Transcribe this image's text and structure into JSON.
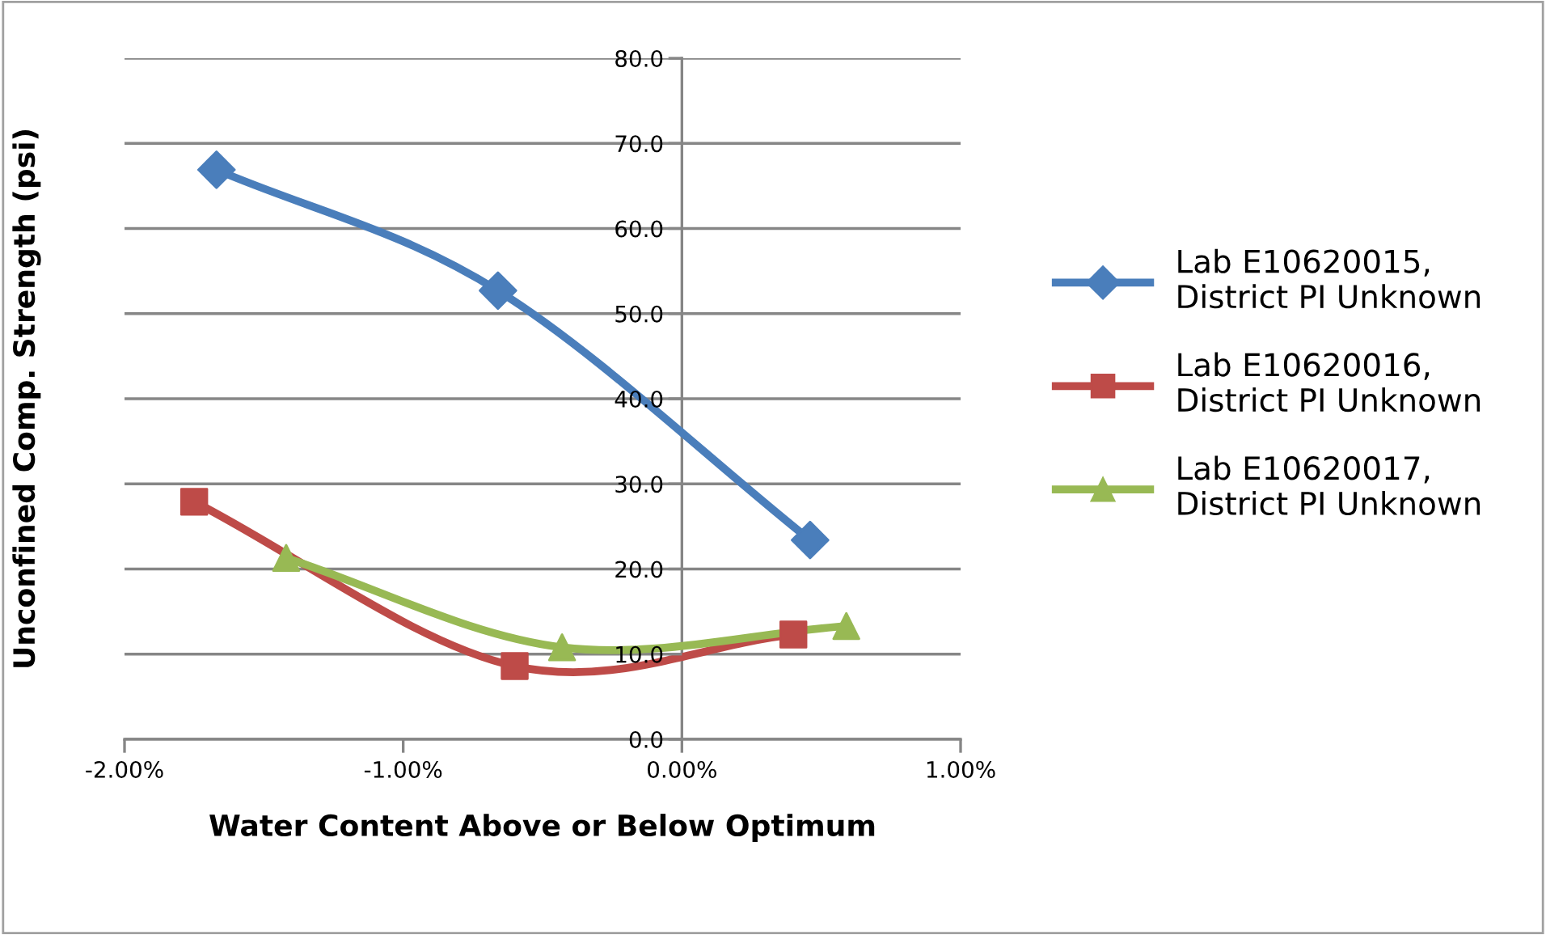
{
  "chart_data": {
    "type": "line",
    "xlabel": "Water Content Above or Below Optimum",
    "ylabel": "Unconfined Comp. Strength (psi)",
    "series": [
      {
        "name": "Lab E10620015,\nDistrict PI Unknown",
        "color": "#4a7ebb",
        "marker": "diamond",
        "x": [
          -1.67,
          -0.66,
          0.46
        ],
        "values": [
          66.9,
          52.7,
          23.4
        ]
      },
      {
        "name": "Lab E10620016,\nDistrict PI Unknown",
        "color": "#be4b48",
        "marker": "square",
        "x": [
          -1.75,
          -0.6,
          0.4
        ],
        "values": [
          27.9,
          8.6,
          12.3
        ]
      },
      {
        "name": "Lab E10620017,\nDistrict PI Unknown",
        "color": "#98b954",
        "marker": "triangle",
        "x": [
          -1.42,
          -0.43,
          0.59
        ],
        "values": [
          21.3,
          10.8,
          13.3
        ]
      }
    ],
    "xlim": [
      -2,
      1
    ],
    "xticks": [
      {
        "value": -2,
        "label": "-2.00%"
      },
      {
        "value": -1,
        "label": "-1.00%"
      },
      {
        "value": 0,
        "label": "0.00%"
      },
      {
        "value": 1,
        "label": "1.00%"
      }
    ],
    "ylim": [
      0,
      80
    ],
    "yticks": [
      {
        "value": 0,
        "label": "0.0"
      },
      {
        "value": 10,
        "label": "10.0"
      },
      {
        "value": 20,
        "label": "20.0"
      },
      {
        "value": 30,
        "label": "30.0"
      },
      {
        "value": 40,
        "label": "40.0"
      },
      {
        "value": 50,
        "label": "50.0"
      },
      {
        "value": 60,
        "label": "60.0"
      },
      {
        "value": 70,
        "label": "70.0"
      },
      {
        "value": 80,
        "label": "80.0"
      }
    ],
    "grid": "y",
    "legend": "right",
    "line_style": "solid"
  }
}
